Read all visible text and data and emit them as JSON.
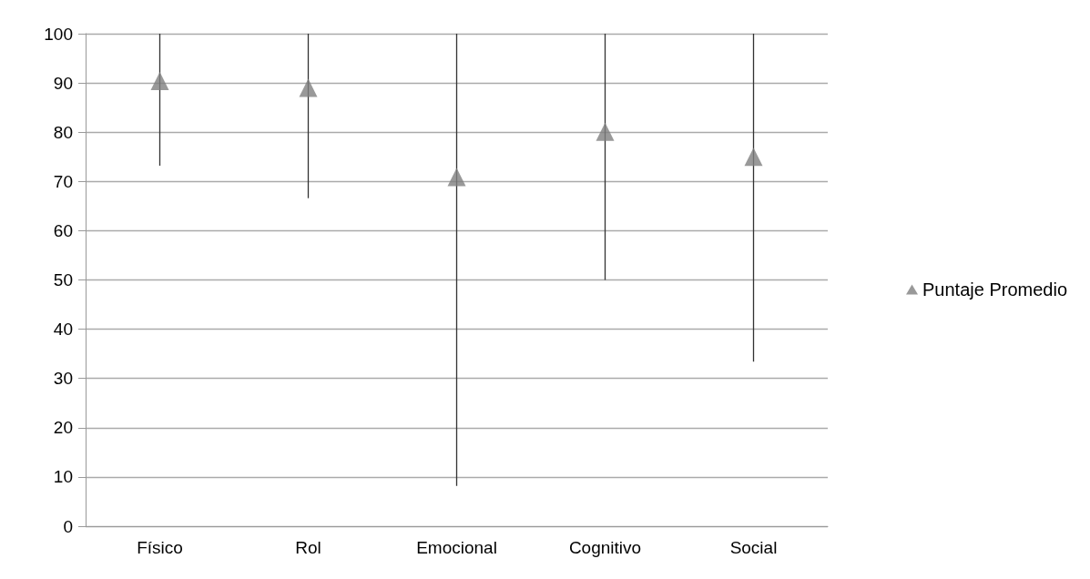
{
  "chart_data": {
    "type": "scatter",
    "categories": [
      "Físico",
      "Rol",
      "Emocional",
      "Cognitivo",
      "Social"
    ],
    "series": [
      {
        "name": "Puntaje Promedio",
        "color": "#808080",
        "values": [
          90.4,
          89,
          70.9,
          80.1,
          75
        ],
        "errors": [
          [
            73.2,
            100
          ],
          [
            66.6,
            100
          ],
          [
            8.2,
            100
          ],
          [
            50,
            100
          ],
          [
            33.4,
            100
          ]
        ]
      }
    ],
    "ylim": [
      0,
      100
    ],
    "yticks": [
      0,
      10,
      20,
      30,
      40,
      50,
      60,
      70,
      80,
      90,
      100
    ],
    "grid": "y",
    "legend": "right",
    "marker": "triangle"
  }
}
